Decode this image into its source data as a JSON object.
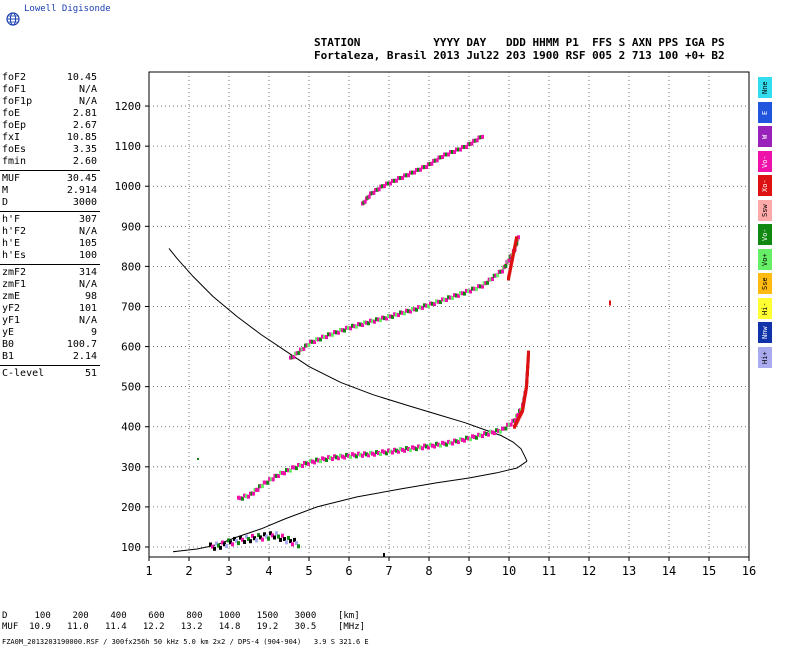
{
  "brand": {
    "name": "Lowell Digisonde"
  },
  "header": {
    "line1": "STATION           YYYY DAY   DDD HHMM P1  FFS S AXN PPS IGA PS",
    "line2": "Fortaleza, Brasil 2013 Jul22 203 1900 RSF 005 2 713 100 +0+ B2"
  },
  "params": [
    [
      {
        "k": "foF2",
        "v": "10.45"
      },
      {
        "k": "foF1",
        "v": "N/A"
      },
      {
        "k": "foF1p",
        "v": "N/A"
      },
      {
        "k": "foE",
        "v": "2.81"
      },
      {
        "k": "foEp",
        "v": "2.67"
      },
      {
        "k": "fxI",
        "v": "10.85"
      },
      {
        "k": "foEs",
        "v": "3.35"
      },
      {
        "k": "fmin",
        "v": "2.60"
      }
    ],
    [
      {
        "k": "MUF",
        "v": "30.45"
      },
      {
        "k": "M",
        "v": "2.914"
      },
      {
        "k": "D",
        "v": "3000"
      }
    ],
    [
      {
        "k": "h'F",
        "v": "307"
      },
      {
        "k": "h'F2",
        "v": "N/A"
      },
      {
        "k": "h'E",
        "v": "105"
      },
      {
        "k": "h'Es",
        "v": "100"
      }
    ],
    [
      {
        "k": "zmF2",
        "v": "314"
      },
      {
        "k": "zmF1",
        "v": "N/A"
      },
      {
        "k": "zmE",
        "v": "98"
      },
      {
        "k": "yF2",
        "v": "101"
      },
      {
        "k": "yF1",
        "v": "N/A"
      },
      {
        "k": "yE",
        "v": "9"
      },
      {
        "k": "B0",
        "v": "100.7"
      },
      {
        "k": "B1",
        "v": "2.14"
      }
    ],
    [
      {
        "k": "C-level",
        "v": "51"
      }
    ]
  ],
  "legend": [
    {
      "label": "Nne",
      "color": "#33ddee"
    },
    {
      "label": "E",
      "color": "#2255dd"
    },
    {
      "label": "W",
      "color": "#9922bb"
    },
    {
      "label": "Vo-",
      "color": "#ee11aa"
    },
    {
      "label": "Xo-",
      "color": "#dd1111"
    },
    {
      "label": "Ssw",
      "color": "#ffaaaa"
    },
    {
      "label": "Vo-",
      "color": "#118811"
    },
    {
      "label": "Vo+",
      "color": "#66ee66"
    },
    {
      "label": "Sse",
      "color": "#ffbb11"
    },
    {
      "label": "Hi-",
      "color": "#ffff33"
    },
    {
      "label": "Nnw",
      "color": "#1133aa"
    },
    {
      "label": "Hi+",
      "color": "#aaaaee"
    }
  ],
  "table": {
    "row_d": "D     100    200    400    600    800   1000   1500   3000    [km]",
    "row_muf": "MUF  10.9   11.0   11.4   12.2   13.2   14.8   19.2   30.5    [MHz]"
  },
  "footer": "FZA0M_2013203190000.RSF / 300fx256h 50 kHz 5.0 km 2x2 / DPS-4 (904-904)   3.9 S 321.6 E",
  "chart_data": {
    "type": "scatter",
    "x_ticks": [
      "1",
      "2",
      "3",
      "4",
      "5",
      "6",
      "7",
      "8",
      "9",
      "10",
      "11",
      "12",
      "13",
      "14",
      "15",
      "16"
    ],
    "y_ticks": [
      "100",
      "200",
      "300",
      "400",
      "500",
      "600",
      "700",
      "800",
      "900",
      "1000",
      "1100",
      "1200"
    ],
    "xlim": [
      1,
      16
    ],
    "ylim": [
      75,
      1285
    ],
    "grid": true,
    "profile": [
      [
        10.45,
        314
      ],
      [
        10.4,
        325
      ],
      [
        10.3,
        345
      ],
      [
        10.1,
        362
      ],
      [
        9.8,
        378
      ],
      [
        9.4,
        392
      ],
      [
        8.9,
        410
      ],
      [
        8.3,
        428
      ],
      [
        7.5,
        452
      ],
      [
        6.6,
        480
      ],
      [
        5.8,
        510
      ],
      [
        5.0,
        550
      ],
      [
        4.4,
        590
      ],
      [
        3.8,
        630
      ],
      [
        3.2,
        675
      ],
      [
        2.6,
        725
      ],
      [
        2.1,
        775
      ],
      [
        1.7,
        820
      ],
      [
        1.5,
        845
      ]
    ],
    "profile_bottom": [
      [
        1.6,
        88
      ],
      [
        2.2,
        95
      ],
      [
        2.6,
        103
      ],
      [
        2.81,
        110
      ],
      [
        3.2,
        125
      ],
      [
        3.8,
        145
      ],
      [
        4.4,
        170
      ],
      [
        5.2,
        200
      ],
      [
        6.2,
        225
      ],
      [
        7.3,
        245
      ],
      [
        8.2,
        260
      ],
      [
        9.0,
        272
      ],
      [
        9.7,
        285
      ],
      [
        10.2,
        297
      ],
      [
        10.45,
        314
      ]
    ],
    "trace_f": [
      [
        3.2,
        220
      ],
      [
        3.5,
        230
      ],
      [
        3.8,
        255
      ],
      [
        4.2,
        280
      ],
      [
        4.6,
        298
      ],
      [
        5.0,
        312
      ],
      [
        5.5,
        322
      ],
      [
        6.0,
        328
      ],
      [
        6.5,
        332
      ],
      [
        7.0,
        338
      ],
      [
        7.5,
        345
      ],
      [
        8.0,
        352
      ],
      [
        8.5,
        360
      ],
      [
        9.0,
        372
      ],
      [
        9.4,
        382
      ],
      [
        9.8,
        392
      ],
      [
        10.1,
        415
      ],
      [
        10.3,
        450
      ],
      [
        10.4,
        500
      ],
      [
        10.45,
        580
      ]
    ],
    "trace_2f": [
      [
        4.5,
        570
      ],
      [
        5.0,
        610
      ],
      [
        5.5,
        630
      ],
      [
        6.0,
        648
      ],
      [
        6.5,
        662
      ],
      [
        7.0,
        675
      ],
      [
        7.5,
        690
      ],
      [
        8.0,
        705
      ],
      [
        8.5,
        722
      ],
      [
        9.0,
        740
      ],
      [
        9.3,
        752
      ],
      [
        9.8,
        790
      ],
      [
        10.1,
        840
      ],
      [
        10.2,
        875
      ]
    ],
    "trace_3f": [
      [
        6.3,
        955
      ],
      [
        6.5,
        980
      ],
      [
        6.8,
        1000
      ],
      [
        7.9,
        1050
      ],
      [
        8.3,
        1075
      ],
      [
        8.9,
        1100
      ],
      [
        9.3,
        1125
      ]
    ],
    "trace_e": [
      [
        2.5,
        100
      ],
      [
        2.8,
        105
      ],
      [
        3.0,
        112
      ],
      [
        3.3,
        118
      ],
      [
        3.6,
        122
      ],
      [
        3.9,
        126
      ],
      [
        4.1,
        130
      ],
      [
        4.4,
        118
      ],
      [
        4.7,
        108
      ]
    ]
  }
}
